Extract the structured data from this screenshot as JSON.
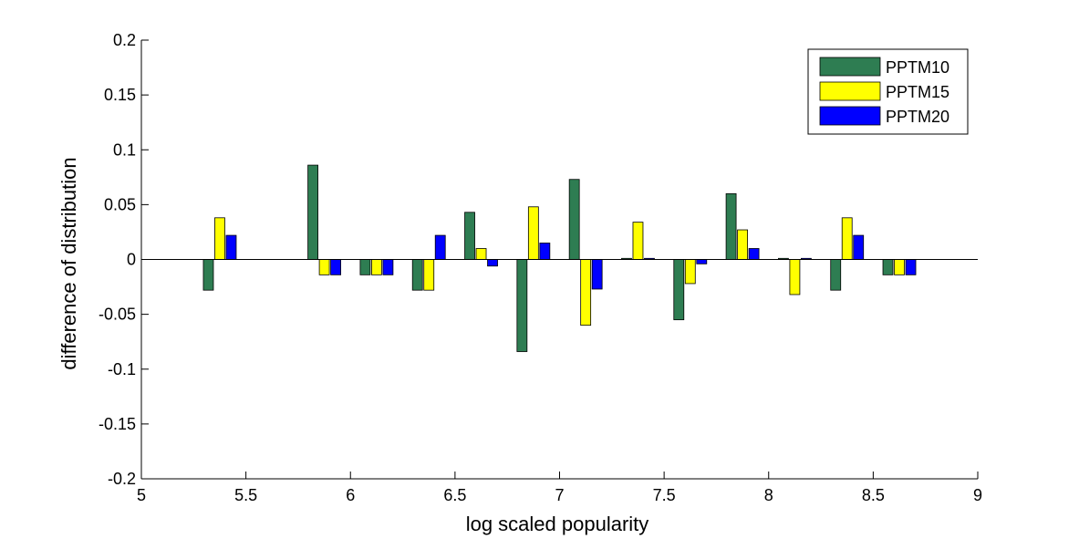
{
  "chart_data": {
    "type": "bar",
    "xlabel": "log scaled popularity",
    "ylabel": "difference of distribution",
    "xlim": [
      5,
      9
    ],
    "ylim": [
      -0.2,
      0.2
    ],
    "x_ticks": [
      "5",
      "5.5",
      "6",
      "6.5",
      "7",
      "7.5",
      "8",
      "8.5",
      "9"
    ],
    "y_ticks": [
      "-0.2",
      "-0.15",
      "-0.1",
      "-0.05",
      "0",
      "0.05",
      "0.1",
      "0.15",
      "0.2"
    ],
    "x": [
      5.375,
      5.875,
      6.125,
      6.375,
      6.625,
      6.875,
      7.125,
      7.375,
      7.625,
      7.875,
      8.125,
      8.375,
      8.625
    ],
    "series": [
      {
        "name": "PPTM10",
        "color": "#2e7d52",
        "values": [
          -0.028,
          0.086,
          -0.014,
          -0.028,
          0.043,
          -0.084,
          0.073,
          0.001,
          -0.055,
          0.06,
          0.001,
          -0.028,
          -0.014
        ]
      },
      {
        "name": "PPTM15",
        "color": "#ffff00",
        "values": [
          0.038,
          -0.014,
          -0.014,
          -0.028,
          0.01,
          0.048,
          -0.06,
          0.034,
          -0.022,
          0.027,
          -0.032,
          0.038,
          -0.014
        ]
      },
      {
        "name": "PPTM20",
        "color": "#0000ff",
        "values": [
          0.022,
          -0.014,
          -0.014,
          0.022,
          -0.006,
          0.015,
          -0.027,
          0.001,
          -0.004,
          0.01,
          0.001,
          0.022,
          -0.014
        ]
      }
    ],
    "legend_position": "top-right",
    "grid": false
  }
}
